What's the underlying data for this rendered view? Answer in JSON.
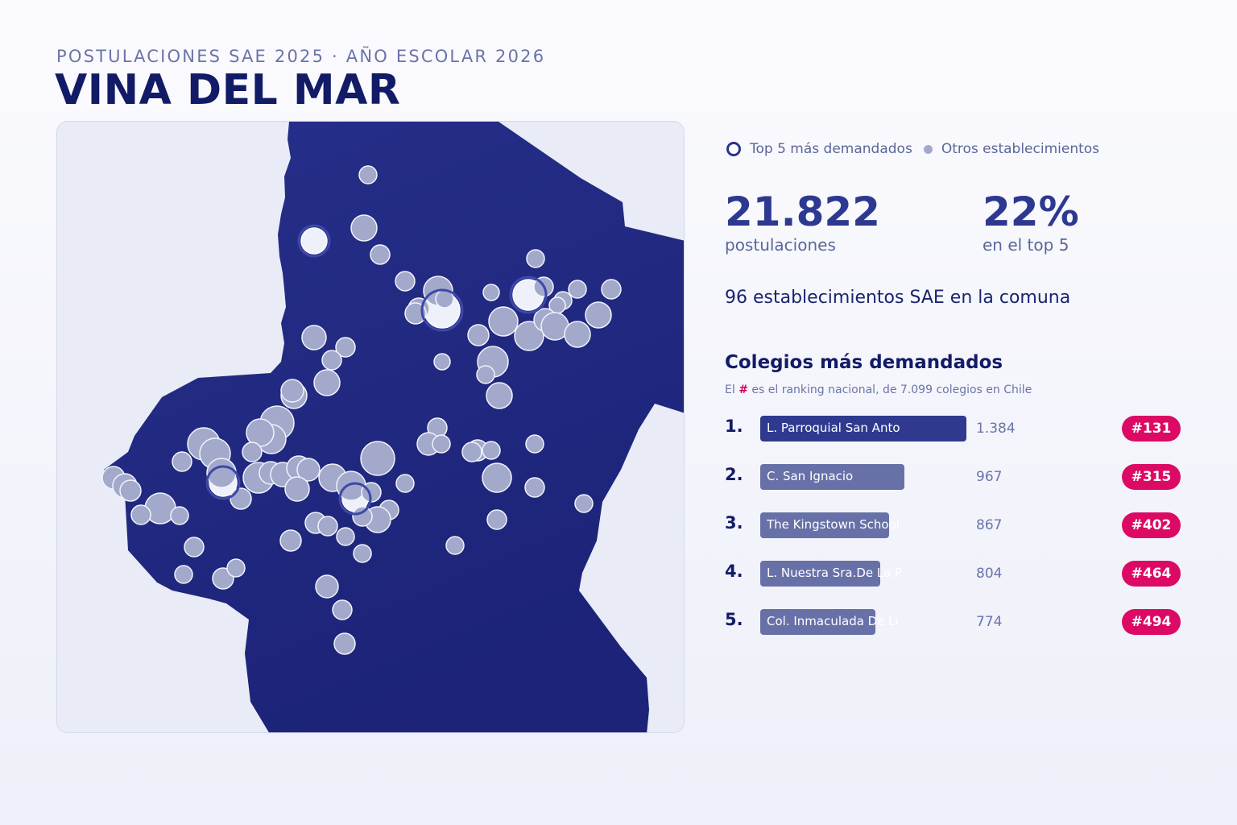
{
  "header": {
    "subtitle": "POSTULACIONES SAE 2025 · AÑO ESCOLAR 2026",
    "title": "VINA DEL MAR"
  },
  "legend": {
    "top5_label": "Top 5 más demandados",
    "others_label": "Otros establecimientos"
  },
  "stats": {
    "postulaciones_value": "21.822",
    "postulaciones_label": "postulaciones",
    "top5_share_value": "22%",
    "top5_share_label": "en el top 5",
    "establecimientos_text": "96 establecimientos SAE en la comuna"
  },
  "ranking": {
    "title": "Colegios más demandados",
    "note_prefix": "El",
    "note_hash": "#",
    "note_suffix": "es el ranking nacional, de 7.099 colegios en Chile",
    "items": [
      {
        "pos": "1.",
        "name": "L. Parroquial San Anto",
        "value": 1384,
        "value_label": "1.384",
        "rank": "#131"
      },
      {
        "pos": "2.",
        "name": "C. San Ignacio",
        "value": 967,
        "value_label": "967",
        "rank": "#315"
      },
      {
        "pos": "3.",
        "name": "The Kingstown School",
        "value": 867,
        "value_label": "867",
        "rank": "#402"
      },
      {
        "pos": "4.",
        "name": "L. Nuestra Sra.De La P",
        "value": 804,
        "value_label": "804",
        "rank": "#464"
      },
      {
        "pos": "5.",
        "name": "Col. Inmaculada De Lou",
        "value": 774,
        "value_label": "774",
        "rank": "#494"
      }
    ]
  },
  "colors": {
    "map_fill": "#232b86",
    "map_background": "#e9ecf6",
    "school_dot": "#a2a9cb",
    "top5_dot": "#eef0fa",
    "bar_first": "#2f3a8f",
    "bar_other": "#6771a8",
    "badge": "#dc0a64"
  }
}
